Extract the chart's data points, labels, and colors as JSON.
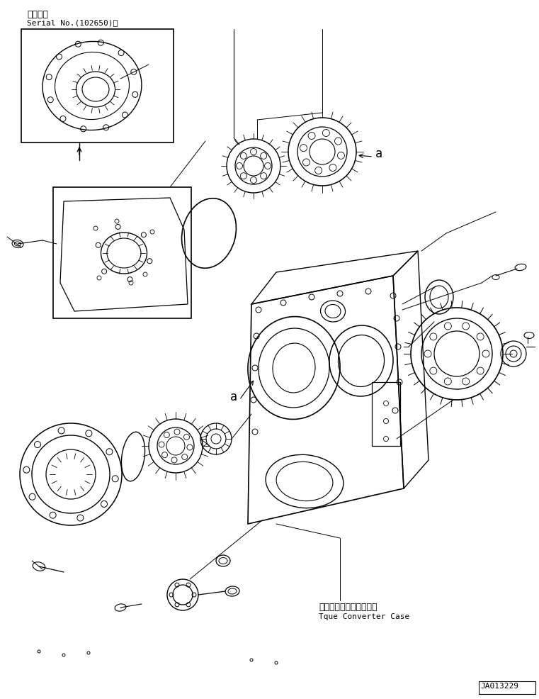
{
  "title_jp": "適用号機",
  "title_serial": "Serial No.(102650)～",
  "label_jp": "トルクコンバータケース",
  "label_en": "Tque Converter Case",
  "label_a": "a",
  "drawing_id": "JA013229",
  "bg_color": "#ffffff",
  "line_color": "#000000",
  "font_family": "monospace",
  "title_fontsize": 9,
  "label_fontsize": 9,
  "small_fontsize": 8
}
